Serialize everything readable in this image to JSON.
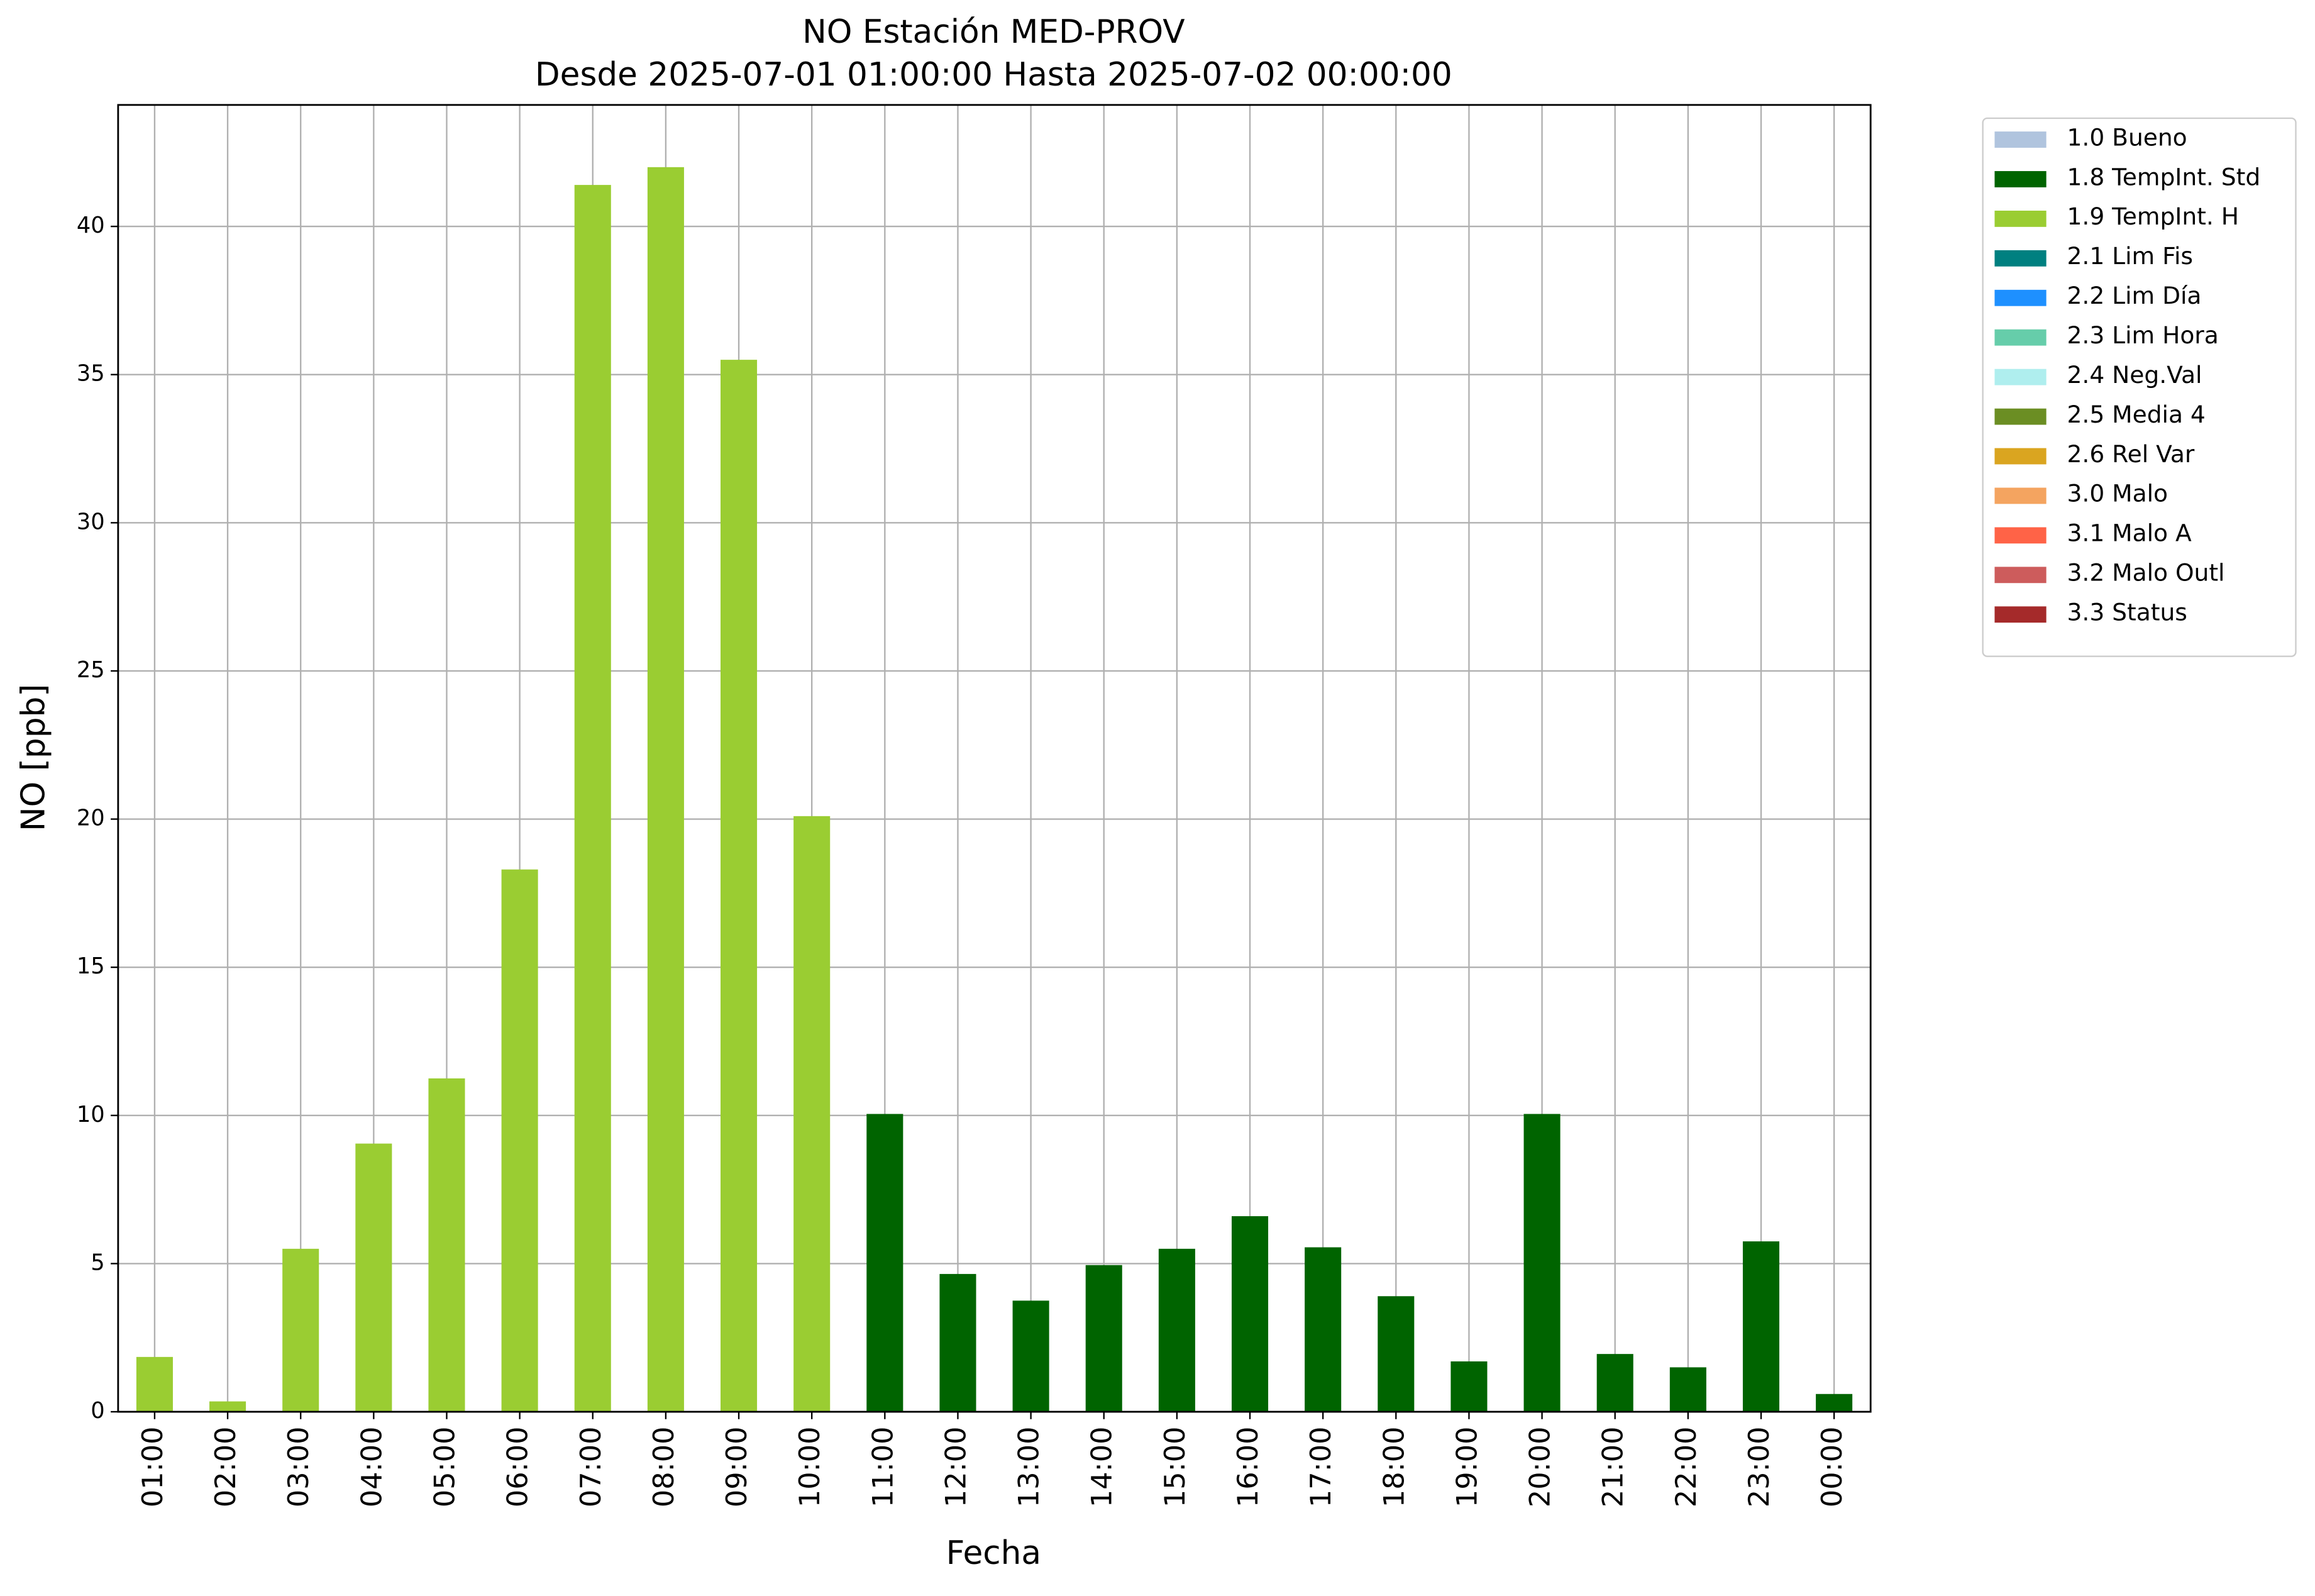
{
  "chart_data": {
    "type": "bar",
    "stacked": true,
    "title": "NO Estación MED-PROV",
    "subtitle": "Desde 2025-07-01 01:00:00 Hasta 2025-07-02 00:00:00",
    "x_label": "Fecha",
    "y_label": "NO [ppb]",
    "categories": [
      "01:00",
      "02:00",
      "03:00",
      "04:00",
      "05:00",
      "06:00",
      "07:00",
      "08:00",
      "09:00",
      "10:00",
      "11:00",
      "12:00",
      "13:00",
      "14:00",
      "15:00",
      "16:00",
      "17:00",
      "18:00",
      "19:00",
      "20:00",
      "21:00",
      "22:00",
      "23:00",
      "00:00"
    ],
    "series": [
      {
        "name": "1.0 Bueno",
        "color": "#b0c4de",
        "values": [
          null,
          null,
          null,
          null,
          null,
          null,
          null,
          null,
          null,
          null,
          null,
          null,
          null,
          null,
          null,
          null,
          null,
          null,
          null,
          null,
          null,
          null,
          null,
          null
        ]
      },
      {
        "name": "1.8 TempInt. Std",
        "color": "#006400",
        "values": [
          null,
          null,
          null,
          null,
          null,
          null,
          null,
          null,
          null,
          null,
          10.05,
          4.65,
          3.75,
          4.95,
          5.5,
          6.6,
          5.55,
          3.9,
          1.7,
          10.05,
          1.95,
          1.5,
          5.75,
          0.6
        ]
      },
      {
        "name": "1.9 TempInt. H",
        "color": "#9acd32",
        "values": [
          1.85,
          0.35,
          5.5,
          9.05,
          11.25,
          18.3,
          41.4,
          42.0,
          35.5,
          20.1,
          null,
          null,
          null,
          null,
          null,
          null,
          null,
          null,
          null,
          null,
          null,
          null,
          null,
          null
        ]
      },
      {
        "name": "2.1 Lim Fis",
        "color": "#008080",
        "values": [
          null,
          null,
          null,
          null,
          null,
          null,
          null,
          null,
          null,
          null,
          null,
          null,
          null,
          null,
          null,
          null,
          null,
          null,
          null,
          null,
          null,
          null,
          null,
          null
        ]
      },
      {
        "name": "2.2 Lim Día",
        "color": "#1e90ff",
        "values": [
          null,
          null,
          null,
          null,
          null,
          null,
          null,
          null,
          null,
          null,
          null,
          null,
          null,
          null,
          null,
          null,
          null,
          null,
          null,
          null,
          null,
          null,
          null,
          null
        ]
      },
      {
        "name": "2.3 Lim Hora",
        "color": "#66cdaa",
        "values": [
          null,
          null,
          null,
          null,
          null,
          null,
          null,
          null,
          null,
          null,
          null,
          null,
          null,
          null,
          null,
          null,
          null,
          null,
          null,
          null,
          null,
          null,
          null,
          null
        ]
      },
      {
        "name": "2.4 Neg.Val",
        "color": "#afeeee",
        "values": [
          null,
          null,
          null,
          null,
          null,
          null,
          null,
          null,
          null,
          null,
          null,
          null,
          null,
          null,
          null,
          null,
          null,
          null,
          null,
          null,
          null,
          null,
          null,
          null
        ]
      },
      {
        "name": "2.5 Media 4",
        "color": "#6b8e23",
        "values": [
          null,
          null,
          null,
          null,
          null,
          null,
          null,
          null,
          null,
          null,
          null,
          null,
          null,
          null,
          null,
          null,
          null,
          null,
          null,
          null,
          null,
          null,
          null,
          null
        ]
      },
      {
        "name": "2.6 Rel Var",
        "color": "#daa520",
        "values": [
          null,
          null,
          null,
          null,
          null,
          null,
          null,
          null,
          null,
          null,
          null,
          null,
          null,
          null,
          null,
          null,
          null,
          null,
          null,
          null,
          null,
          null,
          null,
          null
        ]
      },
      {
        "name": "3.0 Malo",
        "color": "#f4a460",
        "values": [
          null,
          null,
          null,
          null,
          null,
          null,
          null,
          null,
          null,
          null,
          null,
          null,
          null,
          null,
          null,
          null,
          null,
          null,
          null,
          null,
          null,
          null,
          null,
          null
        ]
      },
      {
        "name": "3.1 Malo A",
        "color": "#ff6347",
        "values": [
          null,
          null,
          null,
          null,
          null,
          null,
          null,
          null,
          null,
          null,
          null,
          null,
          null,
          null,
          null,
          null,
          null,
          null,
          null,
          null,
          null,
          null,
          null,
          null
        ]
      },
      {
        "name": "3.2 Malo Outl",
        "color": "#cd5c5c",
        "values": [
          null,
          null,
          null,
          null,
          null,
          null,
          null,
          null,
          null,
          null,
          null,
          null,
          null,
          null,
          null,
          null,
          null,
          null,
          null,
          null,
          null,
          null,
          null,
          null
        ]
      },
      {
        "name": "3.3 Status",
        "color": "#a52a2a",
        "values": [
          null,
          null,
          null,
          null,
          null,
          null,
          null,
          null,
          null,
          null,
          null,
          null,
          null,
          null,
          null,
          null,
          null,
          null,
          null,
          null,
          null,
          null,
          null,
          null
        ]
      }
    ],
    "ylim": [
      0,
      44.1
    ],
    "yticks": [
      0,
      5,
      10,
      15,
      20,
      25,
      30,
      35,
      40
    ],
    "grid": true,
    "legend": "outside right"
  }
}
